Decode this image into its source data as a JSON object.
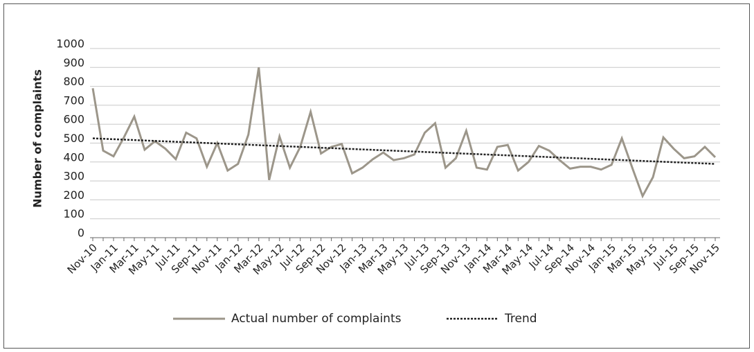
{
  "chart_data": {
    "type": "line",
    "ylabel": "Number of complaints",
    "categories": [
      "Nov-10",
      null,
      "Jan-11",
      null,
      "Mar-11",
      null,
      "May-11",
      null,
      "Jul-11",
      null,
      "Sep-11",
      null,
      "Nov-11",
      null,
      "Jan-12",
      null,
      "Mar-12",
      null,
      "May-12",
      null,
      "Jul-12",
      null,
      "Sep-12",
      null,
      "Nov-12",
      null,
      "Jan-13",
      null,
      "Mar-13",
      null,
      "May-13",
      null,
      "Jul-13",
      null,
      "Sep-13",
      null,
      "Nov-13",
      null,
      "Jan-14",
      null,
      "Mar-14",
      null,
      "May-14",
      null,
      "Jul-14",
      null,
      "Sep-14",
      null,
      "Nov-14",
      null,
      "Jan-15",
      null,
      "Mar-15",
      null,
      "May-15",
      null,
      "Jul-15",
      null,
      "Sep-15",
      null,
      "Nov-15"
    ],
    "series": [
      {
        "name": "Actual number of complaints",
        "color": "#9c968a",
        "style": "solid",
        "values": [
          790,
          460,
          430,
          530,
          640,
          465,
          510,
          470,
          415,
          555,
          525,
          375,
          500,
          355,
          390,
          545,
          900,
          305,
          535,
          370,
          480,
          665,
          445,
          480,
          495,
          340,
          370,
          415,
          450,
          410,
          420,
          440,
          555,
          605,
          370,
          420,
          565,
          370,
          360,
          480,
          490,
          355,
          400,
          485,
          460,
          410,
          365,
          375,
          375,
          360,
          385,
          525,
          370,
          220,
          320,
          530,
          470,
          420,
          430,
          480,
          425
        ]
      },
      {
        "name": "Trend",
        "color": "#222222",
        "style": "dotted",
        "values": [
          525,
          522.75,
          520.5,
          518.25,
          516,
          513.75,
          511.5,
          509.25,
          507,
          504.75,
          502.5,
          500.25,
          498,
          495.75,
          493.5,
          491.25,
          489,
          486.75,
          484.5,
          482.25,
          480,
          477.75,
          475.5,
          473.25,
          471,
          468.75,
          466.5,
          464.25,
          462,
          459.75,
          457.5,
          455.25,
          453,
          450.75,
          448.5,
          446.25,
          444,
          441.75,
          439.5,
          437.25,
          435,
          432.75,
          430.5,
          428.25,
          426,
          423.75,
          421.5,
          419.25,
          417,
          414.75,
          412.5,
          410.25,
          408,
          405.75,
          403.5,
          401.25,
          399,
          396.75,
          394.5,
          392.25,
          390
        ]
      }
    ],
    "ylim": [
      0,
      1000
    ],
    "yticks": [
      0,
      100,
      200,
      300,
      400,
      500,
      600,
      700,
      800,
      900,
      1000
    ],
    "grid": true,
    "legend": "bottom"
  }
}
